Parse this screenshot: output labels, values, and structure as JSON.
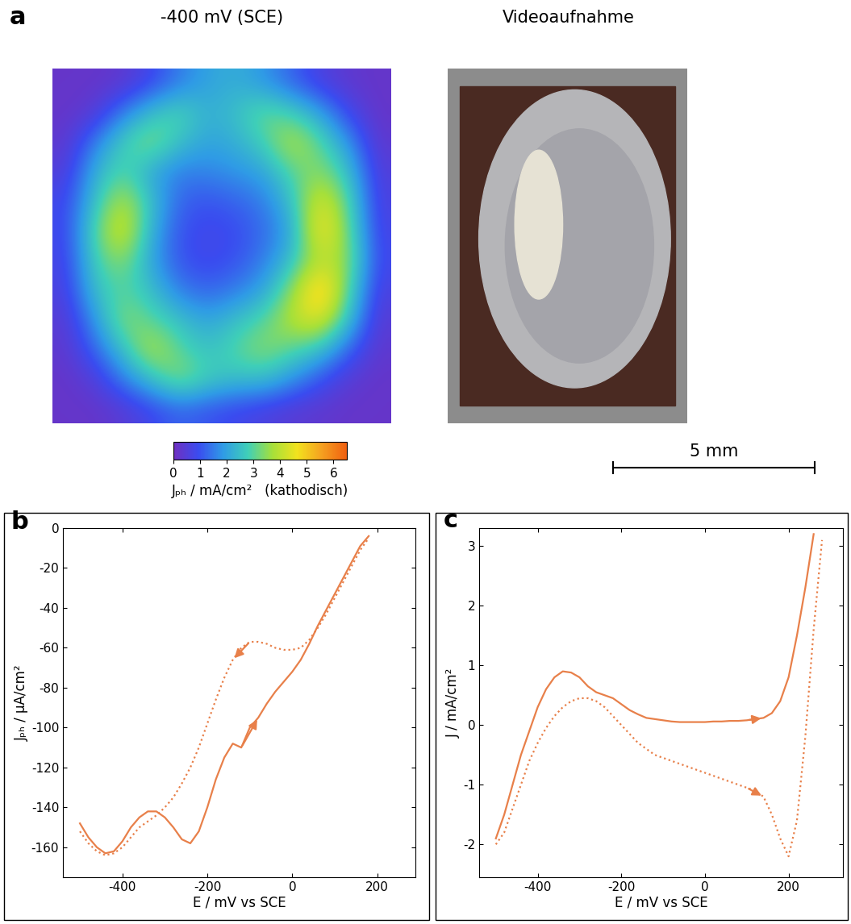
{
  "chart_data": [
    {
      "type": "heatmap",
      "title": "-400 mV (SCE)",
      "annotations": [
        "a"
      ],
      "tick_labels": false,
      "cells": [
        [
          0.2,
          0.2,
          0.3,
          0.8,
          1.5,
          2.0,
          2.2,
          1.8,
          1.2,
          0.6,
          0.3,
          0.2
        ],
        [
          0.2,
          0.4,
          1.5,
          2.5,
          3.0,
          2.2,
          2.5,
          3.2,
          2.8,
          2.0,
          0.8,
          0.2
        ],
        [
          0.3,
          1.5,
          2.8,
          3.5,
          2.5,
          2.0,
          2.2,
          2.8,
          4.0,
          3.0,
          1.8,
          0.3
        ],
        [
          0.5,
          2.2,
          3.0,
          2.0,
          1.5,
          1.6,
          1.8,
          2.0,
          3.0,
          3.5,
          2.5,
          0.5
        ],
        [
          0.8,
          2.5,
          4.0,
          2.5,
          1.2,
          1.0,
          1.2,
          1.5,
          2.5,
          4.5,
          3.0,
          0.6
        ],
        [
          0.8,
          3.0,
          4.5,
          2.2,
          1.0,
          0.8,
          0.9,
          1.3,
          2.0,
          5.0,
          3.2,
          0.7
        ],
        [
          0.7,
          2.8,
          3.5,
          2.0,
          1.0,
          0.8,
          1.0,
          1.5,
          2.5,
          4.0,
          3.5,
          0.8
        ],
        [
          0.6,
          2.5,
          3.0,
          2.5,
          1.5,
          1.2,
          1.5,
          2.0,
          3.5,
          5.5,
          3.0,
          0.6
        ],
        [
          0.4,
          1.8,
          3.5,
          3.0,
          2.5,
          2.0,
          2.5,
          3.0,
          4.0,
          4.5,
          2.5,
          0.4
        ],
        [
          0.3,
          1.2,
          2.5,
          4.0,
          3.0,
          2.5,
          3.0,
          3.5,
          3.0,
          2.5,
          1.2,
          0.3
        ],
        [
          0.2,
          0.5,
          1.5,
          2.5,
          3.5,
          2.8,
          2.5,
          2.5,
          1.8,
          1.0,
          0.4,
          0.2
        ],
        [
          0.2,
          0.2,
          0.4,
          0.8,
          1.2,
          1.0,
          0.8,
          0.6,
          0.4,
          0.3,
          0.2,
          0.2
        ]
      ],
      "colorbar": {
        "range": [
          0,
          6.5
        ],
        "ticks": [
          0,
          1,
          2,
          3,
          4,
          5,
          6
        ],
        "label": "Jₚₕ / mA/cm²   (kathodisch)"
      }
    },
    {
      "type": "image",
      "title": "Videoaufnahme",
      "annotations": [
        "5 mm"
      ]
    },
    {
      "type": "line",
      "annotations": [
        "b"
      ],
      "x_label": "E / mV vs SCE",
      "y_label": "Jₚₕ / µA/cm²",
      "xlim": [
        -540,
        290
      ],
      "ylim": [
        -175,
        0
      ],
      "xticks": [
        -400,
        -200,
        0,
        200
      ],
      "yticks": [
        -160,
        -140,
        -120,
        -100,
        -80,
        -60,
        -40,
        -20,
        0
      ],
      "x": [
        -500,
        -480,
        -460,
        -440,
        -420,
        -400,
        -380,
        -360,
        -340,
        -320,
        -300,
        -280,
        -260,
        -240,
        -220,
        -200,
        -180,
        -160,
        -140,
        -120,
        -100,
        -80,
        -60,
        -40,
        -20,
        0,
        20,
        40,
        60,
        80,
        100,
        120,
        140,
        160,
        180
      ],
      "series": [
        {
          "color": "#e8804a",
          "line_style": "solid",
          "values": [
            -148,
            -155,
            -160,
            -163,
            -162,
            -157,
            -150,
            -145,
            -142,
            -142,
            -145,
            -150,
            -156,
            -158,
            -152,
            -140,
            -126,
            -115,
            -108,
            -110,
            -100,
            -95,
            -88,
            -82,
            -77,
            -72,
            -66,
            -58,
            -49,
            -41,
            -33,
            -25,
            -17,
            -9,
            -4
          ]
        },
        {
          "color": "#e8804a",
          "line_style": "dotted",
          "values": [
            -152,
            -158,
            -162,
            -164,
            -163,
            -160,
            -155,
            -150,
            -147,
            -144,
            -140,
            -135,
            -128,
            -120,
            -110,
            -98,
            -86,
            -75,
            -66,
            -60,
            -57,
            -57,
            -58,
            -60,
            -61,
            -61,
            -60,
            -56,
            -50,
            -43,
            -35,
            -27,
            -19,
            -11,
            -5
          ]
        }
      ]
    },
    {
      "type": "line",
      "annotations": [
        "c"
      ],
      "x_label": "E / mV vs SCE",
      "y_label": "J / mA/cm²",
      "xlim": [
        -540,
        330
      ],
      "ylim": [
        -2.55,
        3.3
      ],
      "xticks": [
        -400,
        -200,
        0,
        200
      ],
      "yticks": [
        -2,
        -1,
        0,
        1,
        2,
        3
      ],
      "x": [
        -500,
        -480,
        -460,
        -440,
        -420,
        -400,
        -380,
        -360,
        -340,
        -320,
        -300,
        -280,
        -260,
        -240,
        -220,
        -200,
        -180,
        -160,
        -140,
        -120,
        -100,
        -80,
        -60,
        -40,
        -20,
        0,
        20,
        40,
        60,
        80,
        100,
        120,
        140,
        160,
        180,
        200,
        220,
        240,
        260,
        280
      ],
      "series": [
        {
          "color": "#e8804a",
          "line_style": "solid",
          "values": [
            -1.9,
            -1.5,
            -1.0,
            -0.5,
            -0.1,
            0.3,
            0.6,
            0.8,
            0.9,
            0.88,
            0.8,
            0.65,
            0.55,
            0.5,
            0.45,
            0.35,
            0.25,
            0.18,
            0.12,
            0.1,
            0.08,
            0.06,
            0.05,
            0.05,
            0.05,
            0.05,
            0.06,
            0.06,
            0.07,
            0.07,
            0.08,
            0.1,
            0.12,
            0.2,
            0.4,
            0.8,
            1.5,
            2.3,
            3.2,
            null
          ]
        },
        {
          "color": "#e8804a",
          "line_style": "dotted",
          "values": [
            -2.0,
            -1.8,
            -1.4,
            -1.0,
            -0.6,
            -0.3,
            -0.05,
            0.15,
            0.3,
            0.4,
            0.45,
            0.45,
            0.4,
            0.3,
            0.15,
            0.0,
            -0.15,
            -0.3,
            -0.4,
            -0.5,
            -0.55,
            -0.6,
            -0.65,
            -0.7,
            -0.75,
            -0.8,
            -0.85,
            -0.9,
            -0.95,
            -1.0,
            -1.05,
            -1.1,
            -1.2,
            -1.5,
            -1.9,
            -2.2,
            -1.6,
            -0.2,
            1.6,
            3.1
          ]
        }
      ]
    }
  ]
}
